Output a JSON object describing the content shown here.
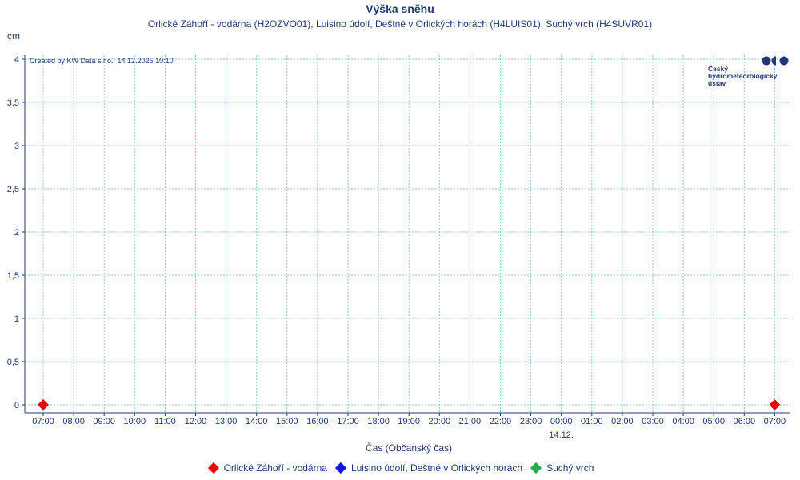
{
  "chart_data": {
    "type": "scatter",
    "title": "Výška sněhu",
    "subtitle": "Orlické Záhoří - vodárna (H2OZVO01), Luisino údolí, Deštné v Orlických horách (H4LUIS01), Suchý vrch (H4SUVR01)",
    "ylabel": "cm",
    "xlabel": "Čas (Občanský čas)",
    "ylim": [
      0,
      4
    ],
    "y_ticks": [
      "0",
      "0,5",
      "1",
      "1,5",
      "2",
      "2,5",
      "3",
      "3,5",
      "4"
    ],
    "x_ticks": [
      "07:00",
      "08:00",
      "09:00",
      "10:00",
      "11:00",
      "12:00",
      "13:00",
      "14:00",
      "15:00",
      "16:00",
      "17:00",
      "18:00",
      "19:00",
      "20:00",
      "21:00",
      "22:00",
      "23:00",
      "00:00",
      "01:00",
      "02:00",
      "03:00",
      "04:00",
      "05:00",
      "06:00",
      "07:00"
    ],
    "x_date_label": "14.12.",
    "x_date_tick_index": 17,
    "grid": true,
    "legend_position": "bottom",
    "series": [
      {
        "name": "Orlické Záhoří - vodárna",
        "color": "#e8000b",
        "points": [
          {
            "x_index": 0,
            "y": 0
          },
          {
            "x_index": 24,
            "y": 0
          }
        ]
      },
      {
        "name": "Luisino údolí, Deštné v Orlických horách",
        "color": "#0a14e6",
        "points": []
      },
      {
        "name": "Suchý vrch",
        "color": "#22b04a",
        "points": []
      }
    ]
  },
  "credit": "Created by KW Data s.r.o., 14.12.2025 10:10",
  "logo": {
    "line1": "Český",
    "line2": "hydrometeorologický",
    "line3": "ústav",
    "color": "#1f3a78"
  }
}
